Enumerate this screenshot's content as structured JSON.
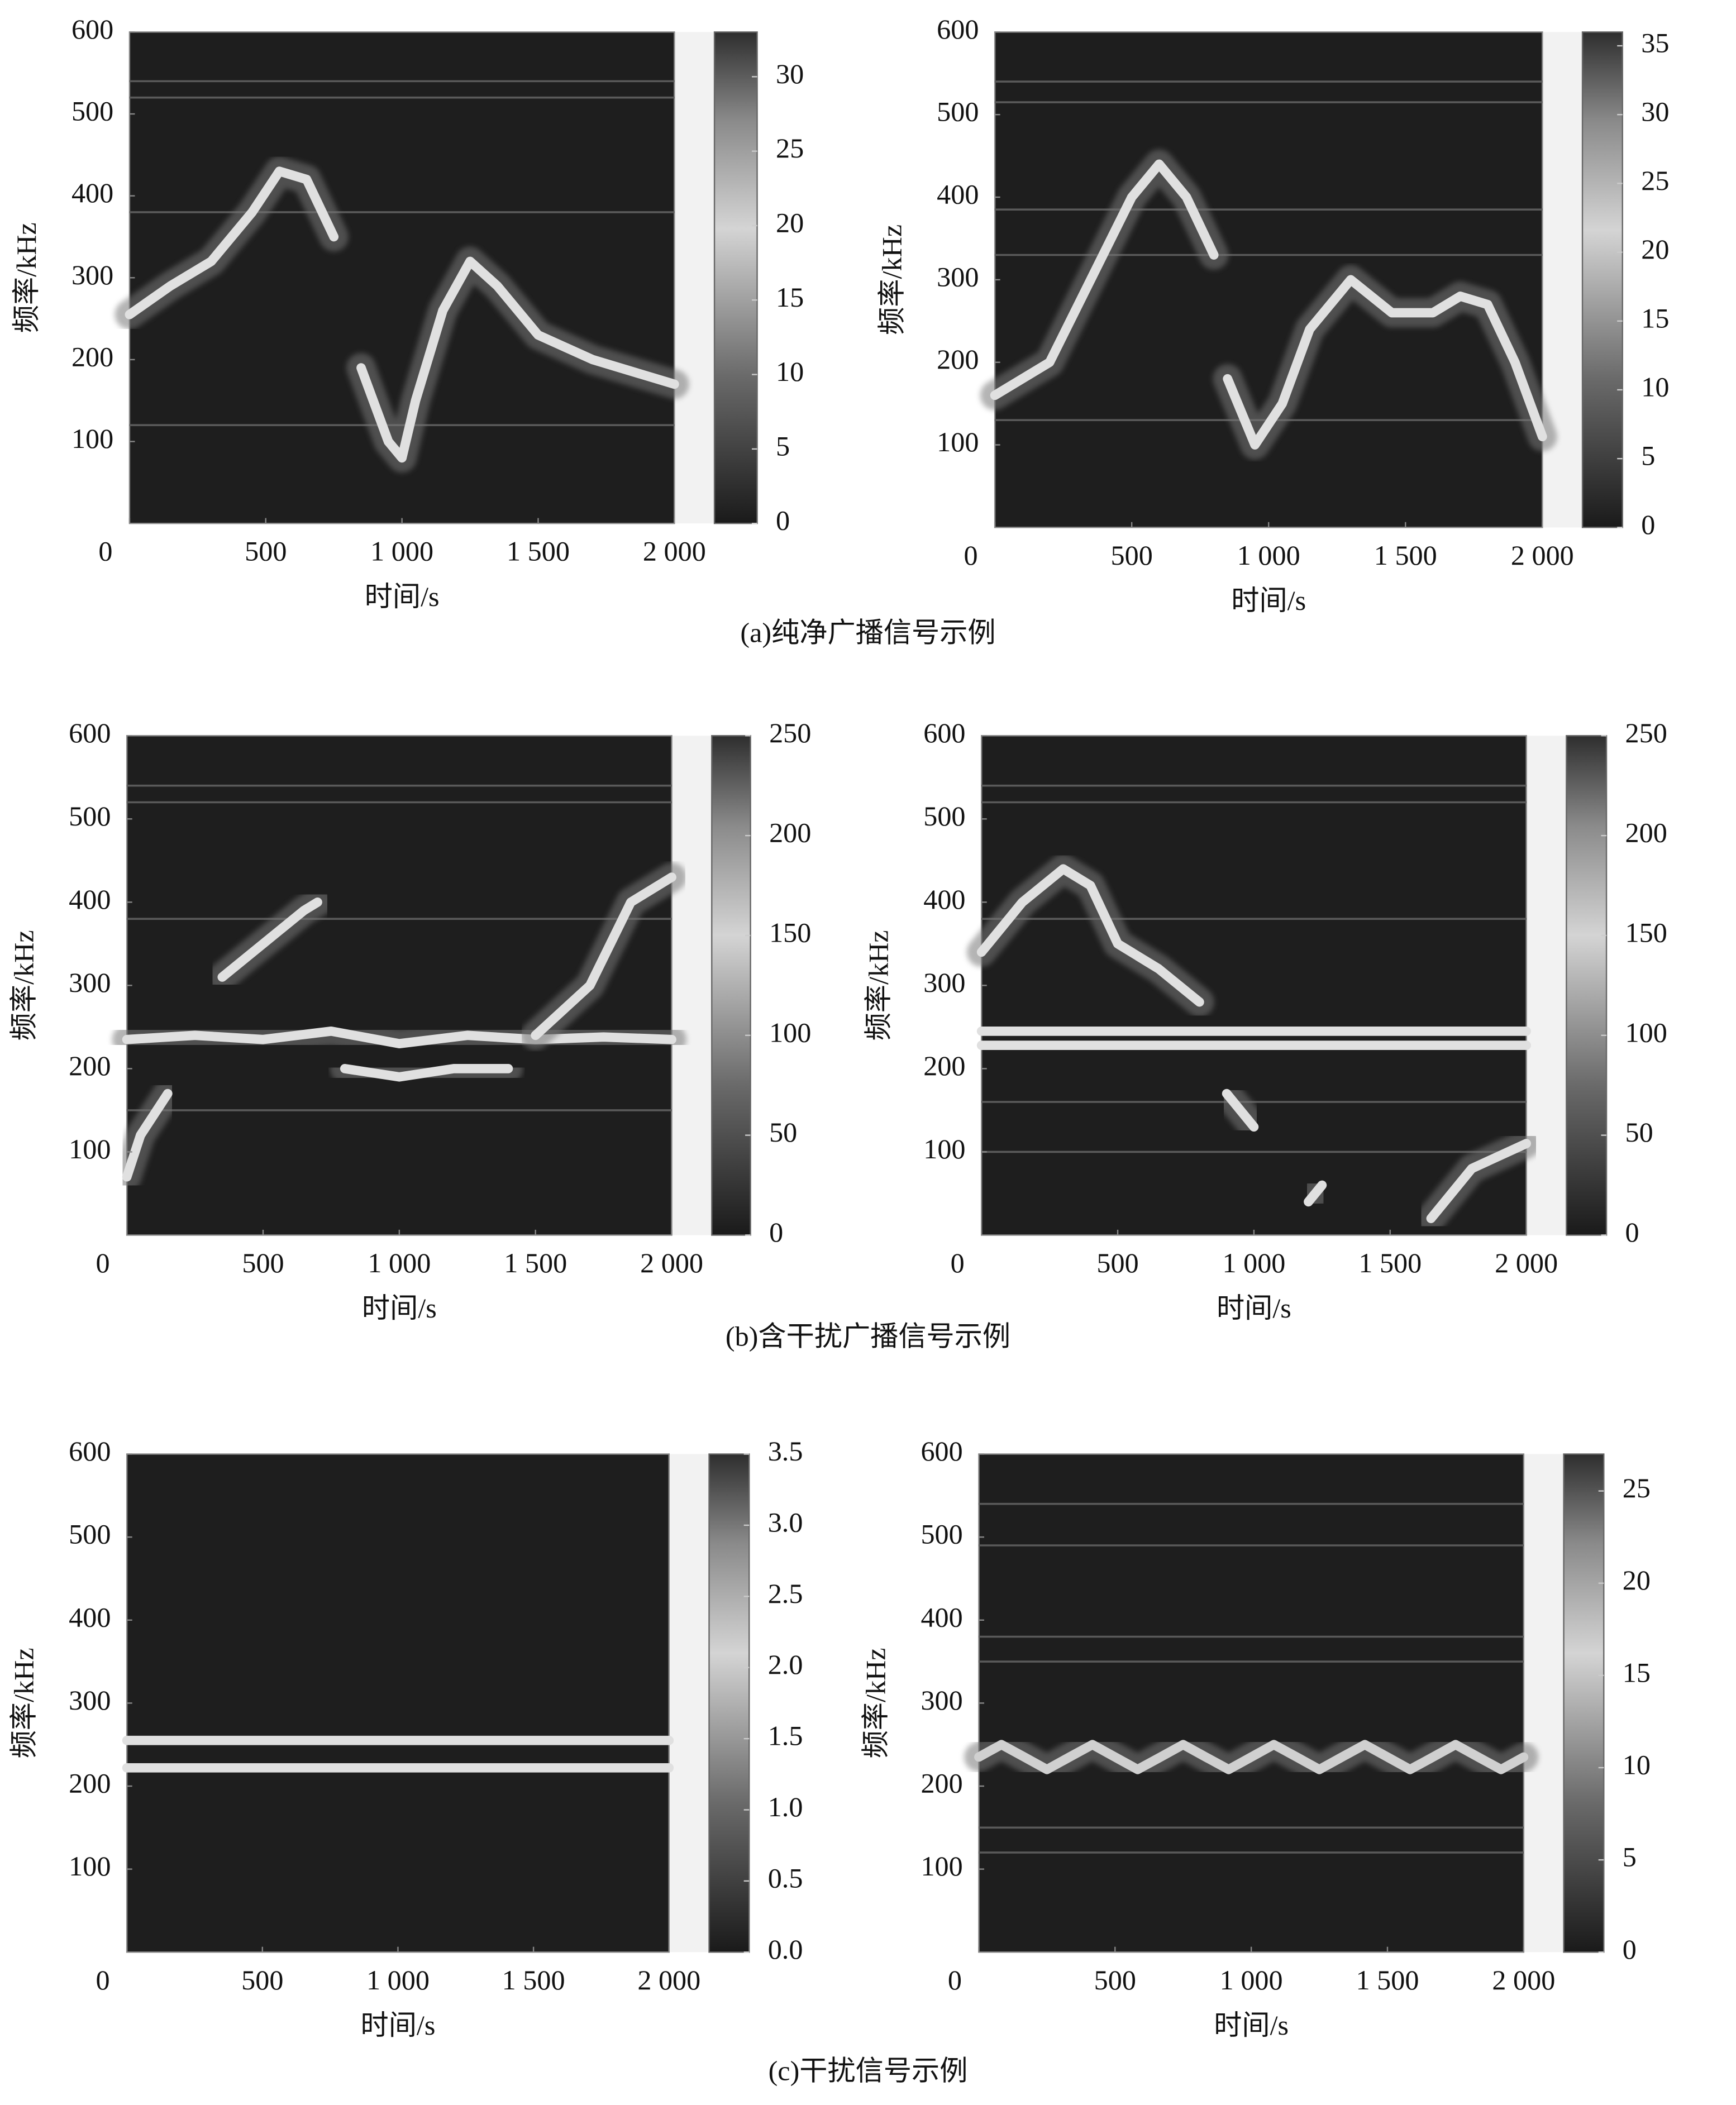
{
  "captions": [
    "(a)纯净广播信号示例",
    "(b)含干扰广播信号示例",
    "(c)干扰信号示例"
  ],
  "chart_data": [
    {
      "type": "spectrogram",
      "xlabel": "时间/s",
      "ylabel": "频率/kHz",
      "xlim": [
        0,
        2000
      ],
      "ylim": [
        0,
        600
      ],
      "xticks": [
        0,
        500,
        {
          "value": 1000,
          "label": "1 000"
        },
        {
          "value": 1500,
          "label": "1 500"
        },
        {
          "value": 2000,
          "label": "2 000"
        }
      ],
      "yticks": [
        100,
        200,
        300,
        400,
        500,
        600
      ],
      "clim": [
        0,
        33
      ],
      "cticks": [
        0,
        5,
        10,
        15,
        20,
        25,
        30
      ],
      "ridge_color": "#e0e0e0",
      "hlines": [
        540,
        520,
        380,
        120
      ],
      "ridges": [
        {
          "x": [
            0,
            150,
            300,
            450,
            550,
            650,
            750
          ],
          "y": [
            255,
            290,
            320,
            380,
            430,
            420,
            350
          ]
        },
        {
          "x": [
            850,
            950,
            1000,
            1050,
            1150,
            1250,
            1350,
            1500,
            1700,
            2000
          ],
          "y": [
            190,
            100,
            80,
            150,
            260,
            320,
            290,
            230,
            200,
            170
          ]
        }
      ]
    },
    {
      "type": "spectrogram",
      "xlabel": "时间/s",
      "ylabel": "频率/kHz",
      "xlim": [
        0,
        2000
      ],
      "ylim": [
        0,
        600
      ],
      "xticks": [
        0,
        500,
        {
          "value": 1000,
          "label": "1 000"
        },
        {
          "value": 1500,
          "label": "1 500"
        },
        {
          "value": 2000,
          "label": "2 000"
        }
      ],
      "yticks": [
        100,
        200,
        300,
        400,
        500,
        600
      ],
      "clim": [
        0,
        36
      ],
      "cticks": [
        0,
        5,
        10,
        15,
        20,
        25,
        30,
        35
      ],
      "ridge_color": "#e0e0e0",
      "hlines": [
        540,
        515,
        385,
        330,
        130
      ],
      "ridges": [
        {
          "x": [
            0,
            200,
            350,
            500,
            600,
            700,
            800
          ],
          "y": [
            160,
            200,
            300,
            400,
            440,
            400,
            330
          ]
        },
        {
          "x": [
            850,
            950,
            1050,
            1150,
            1300,
            1450,
            1600,
            1700,
            1800,
            1900,
            2000
          ],
          "y": [
            180,
            100,
            150,
            240,
            300,
            260,
            260,
            280,
            270,
            200,
            110
          ]
        }
      ]
    },
    {
      "type": "spectrogram",
      "xlabel": "时间/s",
      "ylabel": "频率/kHz",
      "xlim": [
        0,
        2000
      ],
      "ylim": [
        0,
        600
      ],
      "xticks": [
        0,
        500,
        {
          "value": 1000,
          "label": "1 000"
        },
        {
          "value": 1500,
          "label": "1 500"
        },
        {
          "value": 2000,
          "label": "2 000"
        }
      ],
      "yticks": [
        100,
        200,
        300,
        400,
        500,
        600
      ],
      "clim": [
        0,
        250
      ],
      "cticks": [
        0,
        50,
        100,
        150,
        200,
        250
      ],
      "ridge_color": "#e0e0e0",
      "hlines": [
        540,
        520,
        380,
        150
      ],
      "ridges": [
        {
          "x": [
            0,
            250,
            500,
            750,
            1000,
            1250,
            1500,
            1750,
            2000
          ],
          "y": [
            235,
            240,
            235,
            245,
            230,
            240,
            235,
            238,
            235
          ]
        },
        {
          "x": [
            350,
            500,
            650,
            700
          ],
          "y": [
            310,
            350,
            390,
            400
          ]
        },
        {
          "x": [
            800,
            1000,
            1200,
            1400
          ],
          "y": [
            200,
            190,
            200,
            200
          ]
        },
        {
          "x": [
            1500,
            1700,
            1850,
            2000
          ],
          "y": [
            240,
            300,
            400,
            430
          ]
        },
        {
          "x": [
            0,
            50,
            150
          ],
          "y": [
            70,
            120,
            170
          ]
        }
      ]
    },
    {
      "type": "spectrogram",
      "xlabel": "时间/s",
      "ylabel": "频率/kHz",
      "xlim": [
        0,
        2000
      ],
      "ylim": [
        0,
        600
      ],
      "xticks": [
        0,
        500,
        {
          "value": 1000,
          "label": "1 000"
        },
        {
          "value": 1500,
          "label": "1 500"
        },
        {
          "value": 2000,
          "label": "2 000"
        }
      ],
      "yticks": [
        100,
        200,
        300,
        400,
        500,
        600
      ],
      "clim": [
        0,
        250
      ],
      "cticks": [
        0,
        50,
        100,
        150,
        200,
        250
      ],
      "ridge_color": "#e0e0e0",
      "hlines": [
        540,
        520,
        380,
        160,
        100
      ],
      "ridges": [
        {
          "x": [
            0,
            2000
          ],
          "y": [
            245,
            245
          ]
        },
        {
          "x": [
            0,
            2000
          ],
          "y": [
            228,
            228
          ]
        },
        {
          "x": [
            0,
            150,
            300,
            400,
            500,
            650,
            800
          ],
          "y": [
            340,
            400,
            440,
            420,
            350,
            320,
            280
          ]
        },
        {
          "x": [
            900,
            1000
          ],
          "y": [
            170,
            130
          ]
        },
        {
          "x": [
            1200,
            1250
          ],
          "y": [
            40,
            60
          ]
        },
        {
          "x": [
            1650,
            1800,
            2000
          ],
          "y": [
            20,
            80,
            110
          ]
        }
      ]
    },
    {
      "type": "spectrogram",
      "xlabel": "时间/s",
      "ylabel": "频率/kHz",
      "xlim": [
        0,
        2000
      ],
      "ylim": [
        0,
        600
      ],
      "xticks": [
        0,
        500,
        {
          "value": 1000,
          "label": "1 000"
        },
        {
          "value": 1500,
          "label": "1 500"
        },
        {
          "value": 2000,
          "label": "2 000"
        }
      ],
      "yticks": [
        100,
        200,
        300,
        400,
        500,
        600
      ],
      "clim": [
        0,
        3.5
      ],
      "cticks": [
        {
          "value": 0,
          "label": "0.0"
        },
        0.5,
        {
          "value": 1,
          "label": "1.0"
        },
        1.5,
        {
          "value": 2,
          "label": "2.0"
        },
        2.5,
        {
          "value": 3,
          "label": "3.0"
        },
        3.5
      ],
      "ridge_color": "#e0e0e0",
      "hlines": [],
      "ridges": [
        {
          "x": [
            0,
            2000
          ],
          "y": [
            255,
            255
          ]
        },
        {
          "x": [
            0,
            2000
          ],
          "y": [
            222,
            222
          ]
        }
      ]
    },
    {
      "type": "spectrogram",
      "xlabel": "时间/s",
      "ylabel": "频率/kHz",
      "xlim": [
        0,
        2000
      ],
      "ylim": [
        0,
        600
      ],
      "xticks": [
        0,
        500,
        {
          "value": 1000,
          "label": "1 000"
        },
        {
          "value": 1500,
          "label": "1 500"
        },
        {
          "value": 2000,
          "label": "2 000"
        }
      ],
      "yticks": [
        100,
        200,
        300,
        400,
        500,
        600
      ],
      "clim": [
        0,
        27
      ],
      "cticks": [
        0,
        5,
        10,
        15,
        20,
        25
      ],
      "ridge_color": "#d0d0d0",
      "hlines": [
        540,
        490,
        380,
        350,
        150,
        120
      ],
      "ridges": [
        {
          "x": [
            0,
            83,
            167,
            250,
            333,
            417,
            500,
            583,
            667,
            750,
            833,
            917,
            1000,
            1083,
            1167,
            1250,
            1333,
            1417,
            1500,
            1583,
            1667,
            1750,
            1833,
            1917,
            2000
          ],
          "y": [
            235,
            250,
            235,
            220,
            235,
            250,
            235,
            220,
            235,
            250,
            235,
            220,
            235,
            250,
            235,
            220,
            235,
            250,
            235,
            220,
            235,
            250,
            235,
            220,
            235
          ]
        }
      ]
    }
  ]
}
